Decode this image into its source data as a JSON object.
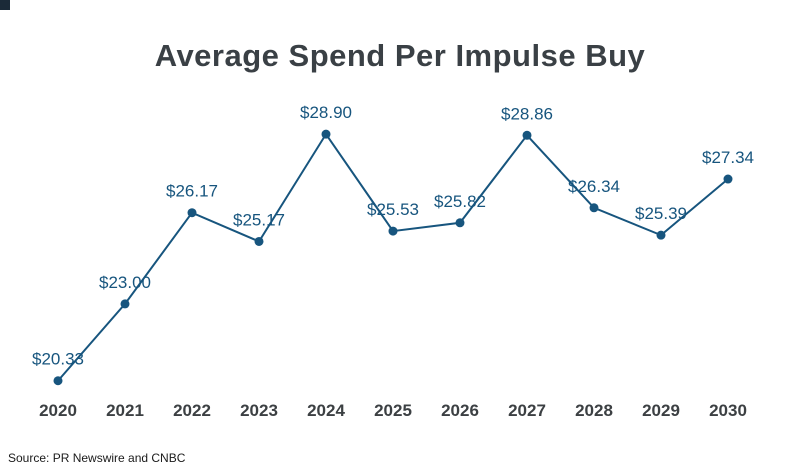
{
  "page": {
    "background": "#ffffff"
  },
  "chart_data": {
    "type": "line",
    "title": "Average Spend Per Impulse Buy",
    "categories": [
      "2020",
      "2021",
      "2022",
      "2023",
      "2024",
      "2025",
      "2026",
      "2027",
      "2028",
      "2029",
      "2030"
    ],
    "values": [
      20.33,
      23.0,
      26.17,
      25.17,
      28.9,
      25.53,
      25.82,
      28.86,
      26.34,
      25.39,
      27.34
    ],
    "value_labels": [
      "$20.33",
      "$23.00",
      "$26.17",
      "$25.17",
      "$28.90",
      "$25.53",
      "$25.82",
      "$28.86",
      "$26.34",
      "$25.39",
      "$27.34"
    ],
    "xlabel": "",
    "ylabel": "",
    "ylim": [
      19.8,
      29.6
    ],
    "grid": false,
    "legend": "none",
    "line_color": "#17557E",
    "point_color": "#17557E",
    "label_color": "#17557E",
    "axis_label_color": "#3C4043"
  },
  "source": {
    "text": "Source: PR Newswire and CNBC"
  }
}
